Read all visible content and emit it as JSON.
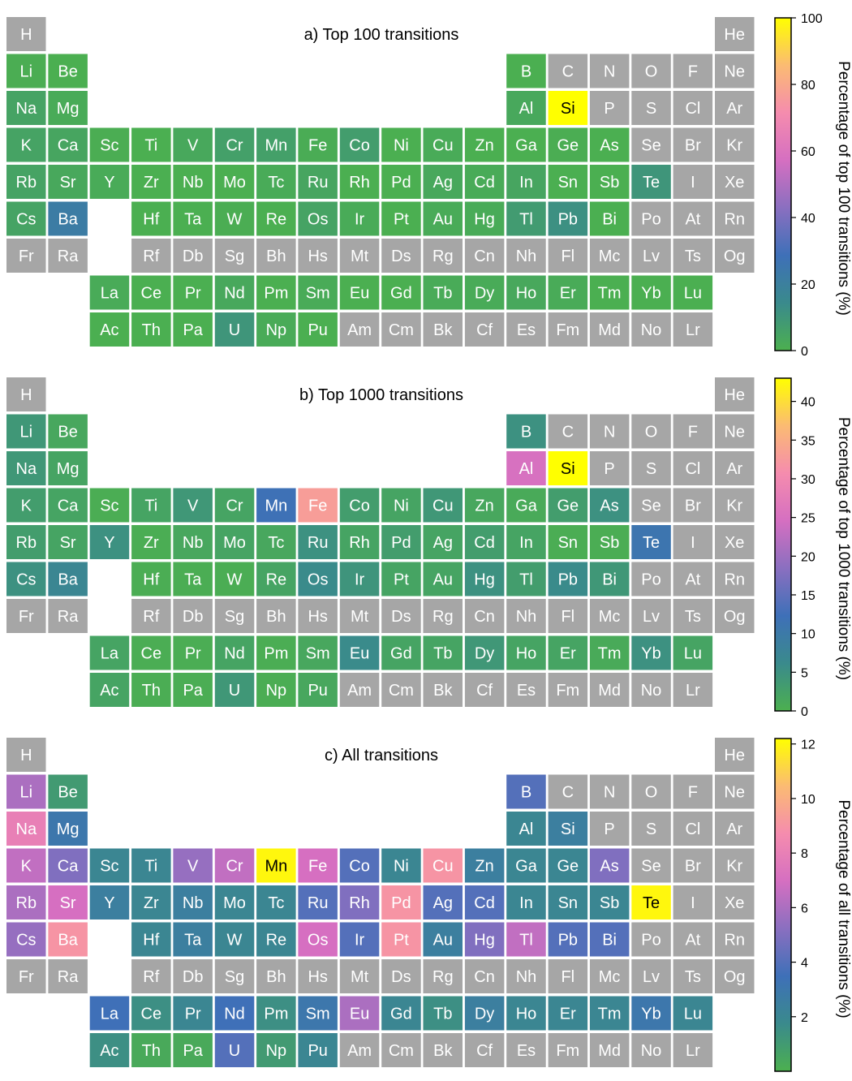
{
  "colormap": {
    "no_data": "#a6a6a6",
    "stops": [
      "#4cb04f",
      "#3a8a8c",
      "#3e70b8",
      "#8a6fc0",
      "#d56fc1",
      "#f58cae",
      "#fbbb73",
      "#ffff00"
    ]
  },
  "layout": {
    "rows": [
      [
        "H",
        null,
        null,
        null,
        null,
        null,
        null,
        null,
        null,
        null,
        null,
        null,
        null,
        null,
        null,
        null,
        null,
        "He"
      ],
      [
        "Li",
        "Be",
        null,
        null,
        null,
        null,
        null,
        null,
        null,
        null,
        null,
        null,
        "B",
        "C",
        "N",
        "O",
        "F",
        "Ne"
      ],
      [
        "Na",
        "Mg",
        null,
        null,
        null,
        null,
        null,
        null,
        null,
        null,
        null,
        null,
        "Al",
        "Si",
        "P",
        "S",
        "Cl",
        "Ar"
      ],
      [
        "K",
        "Ca",
        "Sc",
        "Ti",
        "V",
        "Cr",
        "Mn",
        "Fe",
        "Co",
        "Ni",
        "Cu",
        "Zn",
        "Ga",
        "Ge",
        "As",
        "Se",
        "Br",
        "Kr"
      ],
      [
        "Rb",
        "Sr",
        "Y",
        "Zr",
        "Nb",
        "Mo",
        "Tc",
        "Ru",
        "Rh",
        "Pd",
        "Ag",
        "Cd",
        "In",
        "Sn",
        "Sb",
        "Te",
        "I",
        "Xe"
      ],
      [
        "Cs",
        "Ba",
        null,
        "Hf",
        "Ta",
        "W",
        "Re",
        "Os",
        "Ir",
        "Pt",
        "Au",
        "Hg",
        "Tl",
        "Pb",
        "Bi",
        "Po",
        "At",
        "Rn"
      ],
      [
        "Fr",
        "Ra",
        null,
        "Rf",
        "Db",
        "Sg",
        "Bh",
        "Hs",
        "Mt",
        "Ds",
        "Rg",
        "Cn",
        "Nh",
        "Fl",
        "Mc",
        "Lv",
        "Ts",
        "Og"
      ],
      [
        null,
        null,
        "La",
        "Ce",
        "Pr",
        "Nd",
        "Pm",
        "Sm",
        "Eu",
        "Gd",
        "Tb",
        "Dy",
        "Ho",
        "Er",
        "Tm",
        "Yb",
        "Lu",
        null
      ],
      [
        null,
        null,
        "Ac",
        "Th",
        "Pa",
        "U",
        "Np",
        "Pu",
        "Am",
        "Cm",
        "Bk",
        "Cf",
        "Es",
        "Fm",
        "Md",
        "No",
        "Lr",
        null
      ]
    ]
  },
  "chart_data": [
    {
      "type": "heatmap",
      "title": "a) Top 100 transitions",
      "colorbar_label": "Percentage of top 100 transitions (%)",
      "range": [
        0,
        100
      ],
      "ticks": [
        0,
        20,
        40,
        60,
        80,
        100
      ],
      "values": {
        "Li": 1,
        "Be": 0.5,
        "Na": 5,
        "Mg": 2,
        "B": 0.5,
        "Al": 3,
        "Si": 100,
        "K": 5,
        "Ca": 4,
        "Sc": 1,
        "Ti": 0.5,
        "V": 3,
        "Cr": 6,
        "Mn": 6,
        "Fe": 1.5,
        "Co": 7,
        "Ni": 0.5,
        "Cu": 2,
        "Zn": 0.5,
        "Ga": 0.5,
        "Ge": 1,
        "As": 0.5,
        "Rb": 5,
        "Sr": 3,
        "Y": 2,
        "Zr": 0.5,
        "Nb": 0.5,
        "Mo": 0.5,
        "Tc": 2,
        "Ru": 4,
        "Rh": 0.5,
        "Pd": 0.5,
        "Ag": 3,
        "Cd": 2,
        "In": 4,
        "Sn": 0.5,
        "Sb": 0.5,
        "Te": 10,
        "Cs": 5,
        "Ba": 22,
        "Hf": 0.5,
        "Ta": 0.5,
        "W": 1,
        "Re": 0.5,
        "Os": 5,
        "Ir": 2,
        "Pt": 0.5,
        "Au": 2,
        "Hg": 2,
        "Tl": 8,
        "Pb": 12,
        "Bi": 0.5,
        "La": 2,
        "Ce": 0.5,
        "Pr": 0.5,
        "Nd": 3,
        "Pm": 0.5,
        "Sm": 2,
        "Eu": 0.5,
        "Gd": 0.5,
        "Tb": 2,
        "Dy": 2,
        "Ho": 3,
        "Er": 2,
        "Tm": 0.5,
        "Yb": 0.5,
        "Lu": 0.5,
        "Ac": 0.5,
        "Th": 0.5,
        "Pa": 0.5,
        "U": 10,
        "Np": 2,
        "Pu": 0.5
      }
    },
    {
      "type": "heatmap",
      "title": "b) Top 1000 transitions",
      "colorbar_label": "Percentage of top 1000 transitions (%)",
      "range": [
        0,
        43
      ],
      "ticks": [
        0,
        5,
        10,
        15,
        20,
        25,
        30,
        35,
        40
      ],
      "values": {
        "Li": 4,
        "Be": 1.5,
        "Na": 4,
        "Mg": 2,
        "B": 5,
        "Al": 25,
        "Si": 43,
        "K": 3,
        "Ca": 2,
        "Sc": 0.5,
        "Ti": 2,
        "V": 4,
        "Cr": 2,
        "Mn": 12,
        "Fe": 33,
        "Co": 3,
        "Ni": 2,
        "Cu": 4,
        "Zn": 1.5,
        "Ga": 1,
        "Ge": 3,
        "As": 5,
        "Rb": 3,
        "Sr": 2,
        "Y": 5,
        "Zr": 0.5,
        "Nb": 1.5,
        "Mo": 2,
        "Tc": 1.5,
        "Ru": 5,
        "Rh": 2,
        "Pd": 3,
        "Ag": 2,
        "Cd": 3,
        "In": 2,
        "Sn": 0.5,
        "Sb": 0.5,
        "Te": 11,
        "Cs": 5,
        "Ba": 7,
        "Hf": 0.5,
        "Ta": 0.5,
        "W": 0.5,
        "Re": 2,
        "Os": 6,
        "Ir": 4.5,
        "Pt": 2,
        "Au": 2,
        "Hg": 5,
        "Tl": 3,
        "Pb": 6,
        "Bi": 4,
        "La": 2,
        "Ce": 0.5,
        "Pr": 0.5,
        "Nd": 2,
        "Pm": 0.5,
        "Sm": 1.5,
        "Eu": 6,
        "Gd": 2,
        "Tb": 2,
        "Dy": 4,
        "Ho": 2,
        "Er": 2,
        "Tm": 1,
        "Yb": 5,
        "Lu": 2,
        "Ac": 2,
        "Th": 0.5,
        "Pa": 0.5,
        "U": 4,
        "Np": 0.5,
        "Pu": 1.5
      }
    },
    {
      "type": "heatmap",
      "title": "c) All transitions",
      "colorbar_label": "Percentage of all transitions (%)",
      "range": [
        0,
        12.2
      ],
      "ticks": [
        2,
        4,
        6,
        8,
        10,
        12
      ],
      "values": {
        "Li": 6,
        "Be": 1,
        "Na": 8,
        "Mg": 3,
        "B": 4,
        "Al": 2,
        "Si": 2.5,
        "K": 6.5,
        "Ca": 5,
        "Sc": 2,
        "Ti": 2,
        "V": 5.5,
        "Cr": 6.5,
        "Mn": 12,
        "Fe": 7,
        "Co": 4,
        "Ni": 2,
        "Cu": 9,
        "Zn": 2.5,
        "Ga": 2,
        "Ge": 2,
        "As": 5,
        "Rb": 6,
        "Sr": 7,
        "Y": 2.5,
        "Zr": 2,
        "Nb": 2.5,
        "Mo": 2,
        "Tc": 2,
        "Ru": 4,
        "Rh": 5,
        "Pd": 9,
        "Ag": 4,
        "Cd": 4,
        "In": 2,
        "Sn": 2,
        "Sb": 2,
        "Te": 12,
        "Cs": 5.5,
        "Ba": 9,
        "Hf": 2,
        "Ta": 2.5,
        "W": 2,
        "Re": 2,
        "Os": 7,
        "Ir": 4,
        "Pt": 9,
        "Au": 2.5,
        "Hg": 5,
        "Tl": 6.5,
        "Pb": 4,
        "Bi": 4,
        "La": 3.5,
        "Ce": 1.5,
        "Pr": 2,
        "Nd": 3.5,
        "Pm": 1.5,
        "Sm": 3,
        "Eu": 6,
        "Gd": 2,
        "Tb": 1.5,
        "Dy": 2.5,
        "Ho": 2,
        "Er": 2,
        "Tm": 2,
        "Yb": 3,
        "Lu": 2,
        "Ac": 1.5,
        "Th": 0.3,
        "Pa": 0.3,
        "U": 4,
        "Np": 1,
        "Pu": 2
      }
    }
  ]
}
